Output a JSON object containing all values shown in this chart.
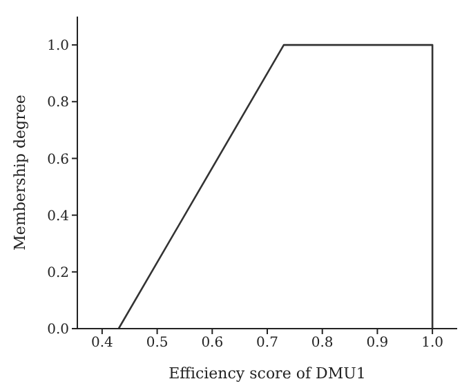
{
  "chart_data": {
    "type": "line",
    "xlabel": "Efficiency score of DMU1",
    "ylabel": "Membership degree",
    "x": [
      0.43,
      0.73,
      1.0,
      1.0
    ],
    "series": [
      {
        "color": "#333333",
        "values": [
          0,
          1,
          1,
          0
        ]
      }
    ],
    "xlim": [
      0.355,
      1.045
    ],
    "xticks": [
      {
        "value": 0.4,
        "label": "0.4"
      },
      {
        "value": 0.5,
        "label": "0.5"
      },
      {
        "value": 0.6,
        "label": "0.6"
      },
      {
        "value": 0.7,
        "label": "0.7"
      },
      {
        "value": 0.8,
        "label": "0.8"
      },
      {
        "value": 0.9,
        "label": "0.9"
      },
      {
        "value": 1.0,
        "label": "1.0"
      }
    ],
    "ylim": [
      0,
      1.1
    ],
    "yticks": [
      {
        "value": 0,
        "label": "0.0"
      },
      {
        "value": 0.2,
        "label": "0.2"
      },
      {
        "value": 0.4,
        "label": "0.4"
      },
      {
        "value": 0.6,
        "label": "0.6"
      },
      {
        "value": 0.8,
        "label": "0.8"
      },
      {
        "value": 1.0,
        "label": "1.0"
      }
    ],
    "grid": false,
    "legend": false,
    "marker": "none",
    "line_style": "solid"
  }
}
